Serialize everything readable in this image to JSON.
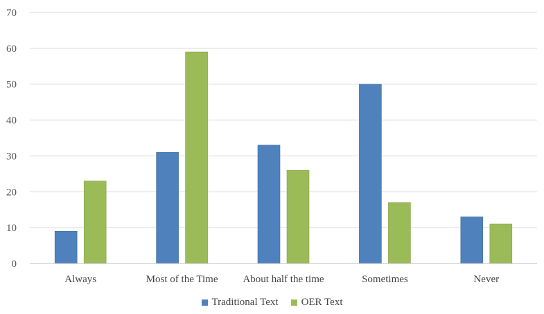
{
  "chart_data": {
    "type": "bar",
    "categories": [
      "Always",
      "Most of the Time",
      "About half the time",
      "Sometimes",
      "Never"
    ],
    "series": [
      {
        "name": "Traditional Text",
        "color": "#4f81bd",
        "values": [
          9,
          31,
          33,
          50,
          13
        ]
      },
      {
        "name": "OER Text",
        "color": "#9bbb59",
        "values": [
          23,
          59,
          26,
          17,
          11
        ]
      }
    ],
    "y_ticks": [
      "0",
      "10",
      "20",
      "30",
      "40",
      "50",
      "60",
      "70"
    ],
    "ylim": [
      0,
      70
    ],
    "grid": true,
    "legend_position": "bottom",
    "title": "",
    "xlabel": "",
    "ylabel": ""
  }
}
